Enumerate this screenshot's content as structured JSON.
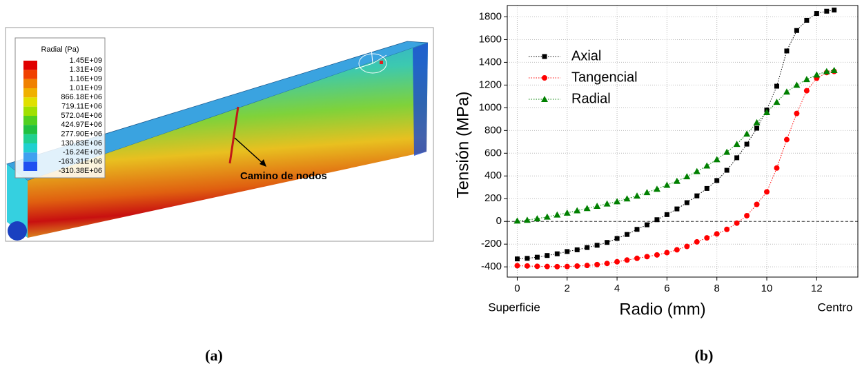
{
  "panel_a": {
    "legend_title": "Radial (Pa)",
    "legend_labels": [
      "1.45E+09",
      "1.31E+09",
      "1.16E+09",
      "1.01E+09",
      "866.18E+06",
      "719.11E+06",
      "572.04E+06",
      "424.97E+06",
      "277.90E+06",
      "130.83E+06",
      "-16.24E+06",
      "-163.31E+06",
      "-310.38E+06"
    ],
    "annotation": "Camino de nodos",
    "caption": "(a)"
  },
  "chart_data": {
    "type": "line",
    "caption": "(b)",
    "x_label": "Radio (mm)",
    "y_label": "Tensión (MPa)",
    "x_start_label": "Superficie",
    "x_end_label": "Centro",
    "x": [
      0,
      0.4,
      0.8,
      1.2,
      1.6,
      2.0,
      2.4,
      2.8,
      3.2,
      3.6,
      4.0,
      4.4,
      4.8,
      5.2,
      5.6,
      6.0,
      6.4,
      6.8,
      7.2,
      7.6,
      8.0,
      8.4,
      8.8,
      9.2,
      9.6,
      10.0,
      10.4,
      10.8,
      11.2,
      11.6,
      12.0,
      12.4,
      12.7
    ],
    "series": [
      {
        "name": "Axial",
        "color": "#000000",
        "marker": "square",
        "values": [
          -330,
          -325,
          -315,
          -300,
          -285,
          -265,
          -250,
          -230,
          -210,
          -185,
          -150,
          -115,
          -70,
          -30,
          15,
          60,
          110,
          165,
          225,
          290,
          360,
          450,
          560,
          680,
          820,
          980,
          1190,
          1500,
          1680,
          1770,
          1830,
          1850,
          1860
        ]
      },
      {
        "name": "Tangencial",
        "color": "#ff0000",
        "marker": "circle",
        "values": [
          -390,
          -392,
          -395,
          -397,
          -398,
          -397,
          -393,
          -388,
          -380,
          -370,
          -355,
          -340,
          -325,
          -310,
          -295,
          -275,
          -250,
          -220,
          -180,
          -145,
          -110,
          -70,
          -15,
          50,
          150,
          260,
          470,
          720,
          950,
          1150,
          1260,
          1310,
          1320
        ]
      },
      {
        "name": "Radial",
        "color": "#008000",
        "marker": "triangle",
        "values": [
          5,
          12,
          25,
          40,
          58,
          75,
          95,
          115,
          135,
          155,
          175,
          200,
          225,
          255,
          285,
          320,
          355,
          395,
          440,
          490,
          545,
          610,
          680,
          770,
          870,
          960,
          1050,
          1140,
          1200,
          1250,
          1290,
          1320,
          1330
        ]
      }
    ],
    "reference_line": 0,
    "xlim": [
      -0.4,
      13.65
    ],
    "ylim": [
      -490,
      1900
    ],
    "xticks": [
      0,
      2,
      4,
      6,
      8,
      10,
      12
    ],
    "yticks": [
      -400,
      -200,
      0,
      200,
      400,
      600,
      800,
      1000,
      1200,
      1400,
      1600,
      1800
    ],
    "grid": true,
    "legend": "upper-left"
  }
}
